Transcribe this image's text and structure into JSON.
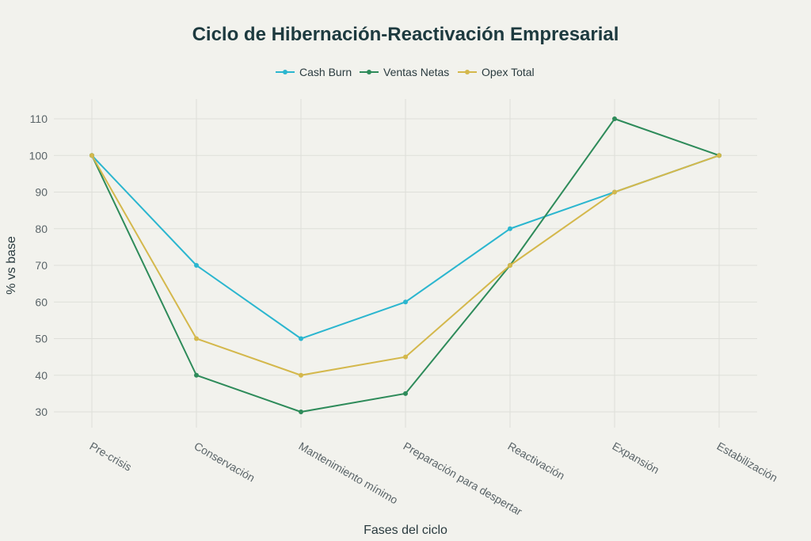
{
  "chart_data": {
    "type": "line",
    "title": "Ciclo de Hibernación-Reactivación Empresarial",
    "xlabel": "Fases del ciclo",
    "ylabel": "% vs base",
    "categories": [
      "Pre-crisis",
      "Conservación",
      "Mantenimiento mínimo",
      "Preparación para despertar",
      "Reactivación",
      "Expansión",
      "Estabilización"
    ],
    "y_ticks": [
      30,
      40,
      50,
      60,
      70,
      80,
      90,
      100,
      110
    ],
    "ylim": [
      25,
      115
    ],
    "grid": true,
    "legend_position": "top-center",
    "series": [
      {
        "name": "Cash Burn",
        "color": "#2bb6cf",
        "values": [
          100,
          70,
          50,
          60,
          80,
          90,
          100
        ]
      },
      {
        "name": "Ventas Netas",
        "color": "#2e8b5a",
        "values": [
          100,
          40,
          30,
          35,
          70,
          110,
          100
        ]
      },
      {
        "name": "Opex Total",
        "color": "#d4b84c",
        "values": [
          100,
          50,
          40,
          45,
          70,
          90,
          100
        ]
      }
    ]
  }
}
